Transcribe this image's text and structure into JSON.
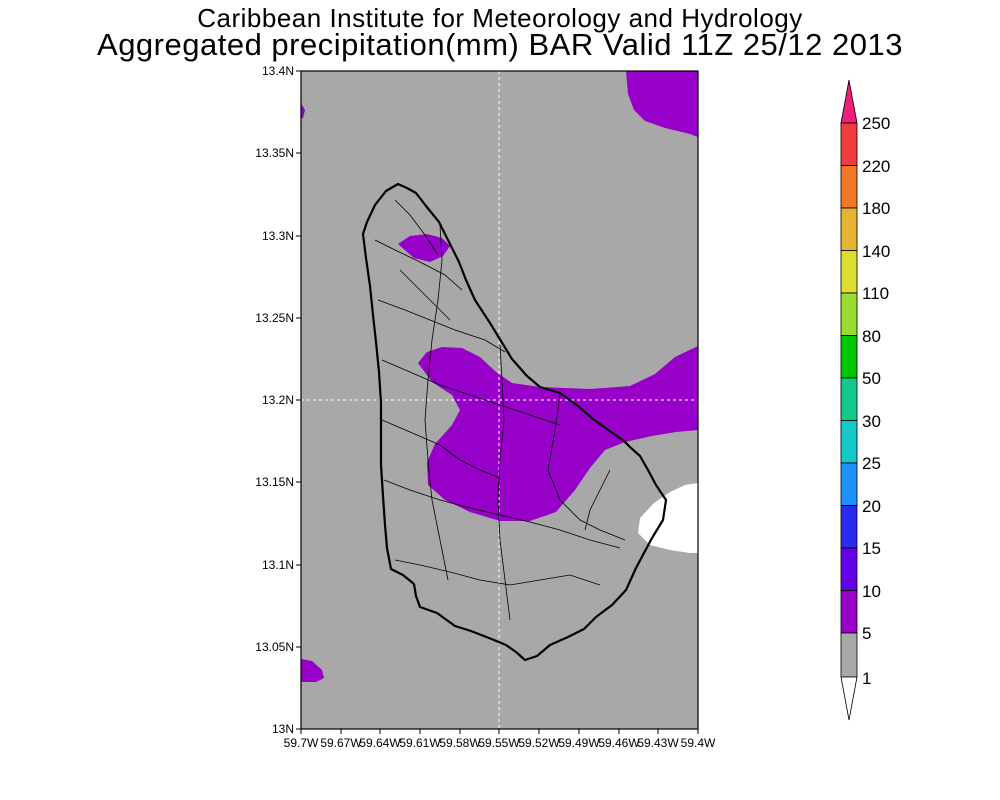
{
  "header": {
    "institute": "Caribbean Institute for Meteorology and Hydrology",
    "product": "Aggregated precipitation(mm) BAR Valid 11Z 25/12 2013"
  },
  "map": {
    "lat_range": [
      13.0,
      13.4
    ],
    "lon_range": [
      -59.7,
      -59.4
    ],
    "lat_ticks": [
      "13N",
      "13.05N",
      "13.1N",
      "13.15N",
      "13.2N",
      "13.25N",
      "13.3N",
      "13.35N",
      "13.4N"
    ],
    "lon_ticks": [
      "59.7W",
      "59.67W",
      "59.64W",
      "59.61W",
      "59.58W",
      "59.55W",
      "59.52W",
      "59.49W",
      "59.46W",
      "59.43W",
      "59.4W"
    ],
    "background_color": "#a8a8a8",
    "region": "Barbados",
    "gridlines": "dashed, white, at 13.2N and 59.55W"
  },
  "colorbar": {
    "levels": [
      "1",
      "5",
      "10",
      "15",
      "20",
      "25",
      "30",
      "50",
      "80",
      "110",
      "140",
      "180",
      "220",
      "250"
    ],
    "colors": [
      "#ffffff",
      "#a8a8a8",
      "#9600c8",
      "#6400e6",
      "#2a2af0",
      "#1e90ff",
      "#14c8c8",
      "#14c88c",
      "#00c800",
      "#96dc32",
      "#dcdc32",
      "#e6b432",
      "#f07828",
      "#f03c3c",
      "#f01e78"
    ]
  }
}
